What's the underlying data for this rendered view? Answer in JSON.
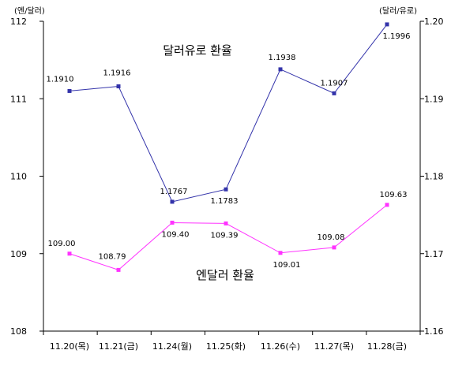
{
  "chart_data": {
    "type": "line",
    "categories": [
      "11.20(목)",
      "11.21(금)",
      "11.24(월)",
      "11.25(화)",
      "11.26(수)",
      "11.27(목)",
      "11.28(금)"
    ],
    "y_left": {
      "unit": "(엔/달러)",
      "range": [
        108,
        112
      ],
      "ticks": [
        "108",
        "109",
        "110",
        "111",
        "112"
      ]
    },
    "y_right": {
      "unit": "(달러/유로)",
      "range": [
        1.16,
        1.2
      ],
      "ticks": [
        "1.16",
        "1.17",
        "1.18",
        "1.19",
        "1.20"
      ]
    },
    "grid": false,
    "series": [
      {
        "name": "달러유로 환율",
        "axis": "right",
        "color": "#3333aa",
        "values": [
          1.191,
          1.1916,
          1.1767,
          1.1783,
          1.1938,
          1.1907,
          1.1996
        ],
        "labels": [
          "1.1910",
          "1.1916",
          "1.1767",
          "1.1783",
          "1.1938",
          "1.1907",
          "1.1996"
        ]
      },
      {
        "name": "엔달러 환율",
        "axis": "left",
        "color": "#ff33ff",
        "values": [
          109.0,
          108.79,
          109.4,
          109.39,
          109.01,
          109.08,
          109.63
        ],
        "labels": [
          "109.00",
          "108.79",
          "109.40",
          "109.39",
          "109.01",
          "109.08",
          "109.63"
        ]
      }
    ]
  }
}
